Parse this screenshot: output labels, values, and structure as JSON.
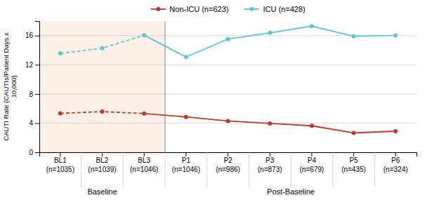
{
  "chart_data": {
    "type": "line",
    "y_label": "CAUTI Rate (CAUTIs/Patient Days x\n10,000)",
    "categories": [
      "BL1\n(n=1035)",
      "BL2\n(n=1039)",
      "BL3\n(n=1046)",
      "P1\n(n=1046)",
      "P2\n(n=986)",
      "P3\n(n=873)",
      "P4\n(n=679)",
      "P5\n(n=435)",
      "P6\n(n=324)"
    ],
    "series": [
      {
        "name": "Non-ICU (n=623)",
        "color": "#c0392b",
        "marker": "circle",
        "values": [
          5.336,
          5.576,
          5.316,
          4.848,
          4.286,
          3.95,
          3.633,
          2.654,
          2.89
        ]
      },
      {
        "name": "ICU (n=428)",
        "color": "#5bc8d4",
        "marker": "circle",
        "values": [
          13.562,
          14.277,
          16.059,
          13.07,
          15.532,
          16.379,
          17.301,
          15.916,
          16.038
        ]
      }
    ],
    "annotations": [
      {
        "text": "Baseline",
        "span": [
          0,
          2
        ],
        "color": "#fdf0e8"
      },
      {
        "text": "Post-Baseline",
        "span": [
          3,
          8
        ]
      }
    ],
    "ylim": [
      0,
      18
    ],
    "yticks": [
      0,
      4,
      8,
      12,
      16
    ],
    "grid": true,
    "legend": "top"
  }
}
